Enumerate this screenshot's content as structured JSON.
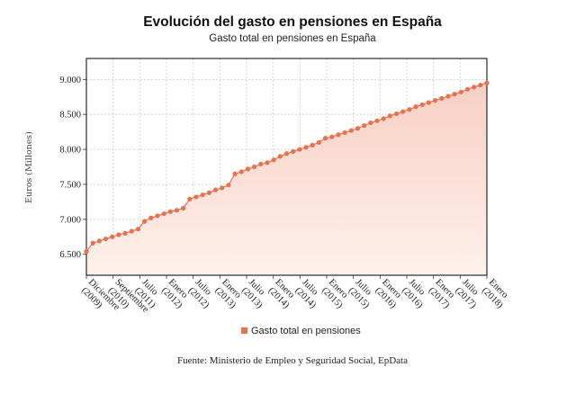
{
  "title": "Evolución del gasto en pensiones en España",
  "subtitle": "Gasto total en pensiones en España",
  "source": "Fuente: Ministerio de Empleo y Seguridad Social, EpData",
  "colors": {
    "series": "#E8714E",
    "area_top": "#F8CFC3",
    "area_bottom": "#FEF1EC",
    "grid": "#CCCCCC"
  },
  "chart_data": {
    "type": "area",
    "title": "Evolución del gasto en pensiones en España",
    "subtitle": "Gasto total en pensiones en España",
    "ylabel": "Euros (Millones)",
    "xlabel": "",
    "ylim": [
      6200,
      9300
    ],
    "y_ticks": [
      6500,
      7000,
      7500,
      8000,
      8500,
      9000
    ],
    "y_tick_labels": [
      "6.500",
      "7.000",
      "7.500",
      "8.000",
      "8.500",
      "9.000"
    ],
    "x_tick_labels": [
      [
        "Diciembre",
        "(2009)"
      ],
      [
        "Septiembre",
        "(2010)"
      ],
      [
        "Julio",
        "(2011)"
      ],
      [
        "Enero",
        "(2012)"
      ],
      [
        "Julio",
        "(2012)"
      ],
      [
        "Enero",
        "(2013)"
      ],
      [
        "Julio",
        "(2013)"
      ],
      [
        "Enero",
        "(2014)"
      ],
      [
        "Julio",
        "(2014)"
      ],
      [
        "Enero",
        "(2015)"
      ],
      [
        "Julio",
        "(2015)"
      ],
      [
        "Enero",
        "(2016)"
      ],
      [
        "Julio",
        "(2016)"
      ],
      [
        "Enero",
        "(2017)"
      ],
      [
        "Julio",
        "(2017)"
      ],
      [
        "Enero",
        "(2018)"
      ]
    ],
    "grid": true,
    "legend": "bottom",
    "series": [
      {
        "name": "Gasto total en pensiones",
        "x_start": "2009-12",
        "x_end": "2018-12",
        "values": [
          6540,
          6660,
          6690,
          6720,
          6750,
          6780,
          6800,
          6830,
          6860,
          6970,
          7020,
          7050,
          7080,
          7110,
          7130,
          7160,
          7290,
          7320,
          7350,
          7380,
          7420,
          7450,
          7490,
          7650,
          7680,
          7720,
          7750,
          7790,
          7810,
          7850,
          7900,
          7940,
          7970,
          8000,
          8030,
          8060,
          8100,
          8160,
          8180,
          8210,
          8240,
          8270,
          8300,
          8340,
          8380,
          8410,
          8440,
          8480,
          8510,
          8540,
          8570,
          8610,
          8640,
          8670,
          8700,
          8730,
          8760,
          8790,
          8820,
          8860,
          8890,
          8920,
          8950
        ]
      }
    ]
  }
}
